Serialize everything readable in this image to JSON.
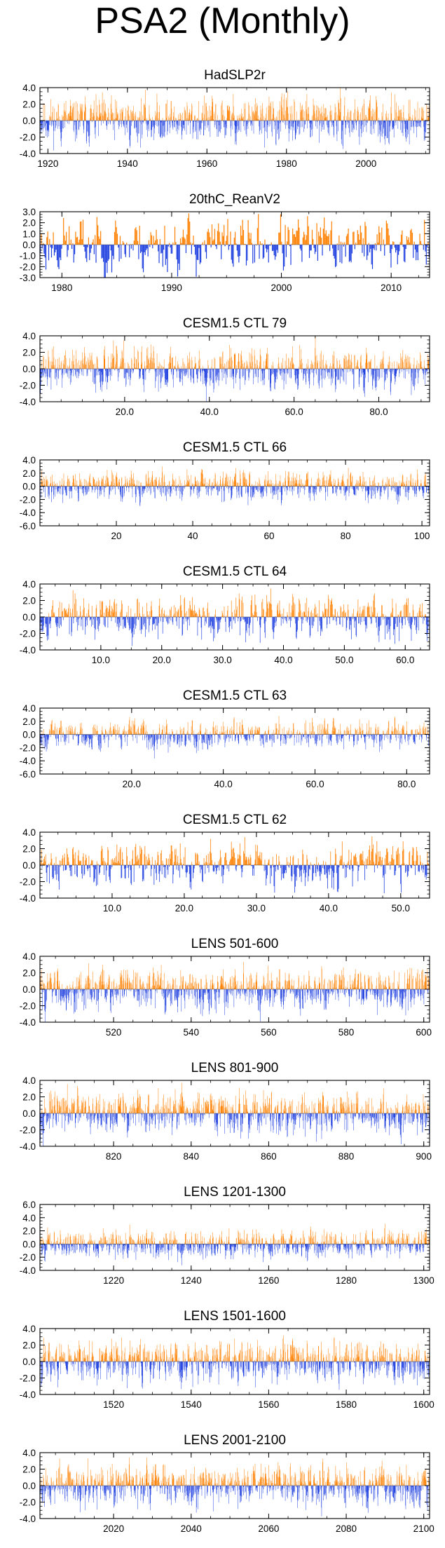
{
  "page": {
    "title": "PSA2 (Monthly)"
  },
  "colors": {
    "positive": "#ff8000",
    "negative": "#1e3fe0",
    "frame": "#000000"
  },
  "chart_data": [
    {
      "type": "bar",
      "title": "HadSLP2r",
      "x_range": [
        1918,
        2016
      ],
      "ylim": [
        -4,
        4
      ],
      "y_ticks": [
        4,
        2,
        0,
        -2,
        -4
      ],
      "y_tick_labels": [
        "4.0",
        "2.0",
        "0.0",
        "-2.0",
        "-4.0"
      ],
      "x_ticks": [
        1920,
        1940,
        1960,
        1980,
        2000
      ],
      "x_tick_labels": [
        "1920",
        "1940",
        "1960",
        "1980",
        "2000"
      ],
      "n_points": 1164,
      "amplitude": 1.3,
      "seed": 11
    },
    {
      "type": "bar",
      "title": "20thC_ReanV2",
      "x_range": [
        1978,
        2013.5
      ],
      "ylim": [
        -3,
        3
      ],
      "y_ticks": [
        3,
        2,
        1,
        0,
        -1,
        -2,
        -3
      ],
      "y_tick_labels": [
        "3.0",
        "2.0",
        "1.0",
        "0.0",
        "-1.0",
        "-2.0",
        "-3.0"
      ],
      "x_ticks": [
        1980,
        1990,
        2000,
        2010
      ],
      "x_tick_labels": [
        "1980",
        "1990",
        "2000",
        "2010"
      ],
      "n_points": 420,
      "amplitude": 1.2,
      "seed": 23
    },
    {
      "type": "bar",
      "title": "CESM1.5 CTL 79",
      "x_range": [
        0,
        92
      ],
      "ylim": [
        -4,
        4
      ],
      "y_ticks": [
        4,
        2,
        0,
        -2,
        -4
      ],
      "y_tick_labels": [
        "4.0",
        "2.0",
        "0.0",
        "-2.0",
        "-4.0"
      ],
      "x_ticks": [
        20,
        40,
        60,
        80
      ],
      "x_tick_labels": [
        "20.0",
        "40.0",
        "60.0",
        "80.0"
      ],
      "n_points": 1100,
      "amplitude": 1.2,
      "seed": 37
    },
    {
      "type": "bar",
      "title": "CESM1.5 CTL 66",
      "x_range": [
        0,
        102
      ],
      "ylim": [
        -6,
        4
      ],
      "y_ticks": [
        4,
        2,
        0,
        -2,
        -4,
        -6
      ],
      "y_tick_labels": [
        "4.0",
        "2.0",
        "0.0",
        "-2.0",
        "-4.0",
        "-6.0"
      ],
      "x_ticks": [
        20,
        40,
        60,
        80,
        100
      ],
      "x_tick_labels": [
        "20",
        "40",
        "60",
        "80",
        "100"
      ],
      "n_points": 1220,
      "amplitude": 1.0,
      "seed": 41
    },
    {
      "type": "bar",
      "title": "CESM1.5 CTL 64",
      "x_range": [
        0,
        64
      ],
      "ylim": [
        -4,
        4
      ],
      "y_ticks": [
        4,
        2,
        0,
        -2,
        -4
      ],
      "y_tick_labels": [
        "4.0",
        "2.0",
        "0.0",
        "-2.0",
        "-4.0"
      ],
      "x_ticks": [
        10,
        20,
        30,
        40,
        50,
        60
      ],
      "x_tick_labels": [
        "10.0",
        "20.0",
        "30.0",
        "40.0",
        "50.0",
        "60.0"
      ],
      "n_points": 760,
      "amplitude": 1.2,
      "seed": 53
    },
    {
      "type": "bar",
      "title": "CESM1.5 CTL 63",
      "x_range": [
        0,
        85
      ],
      "ylim": [
        -6,
        4
      ],
      "y_ticks": [
        4,
        2,
        0,
        -2,
        -4,
        -6
      ],
      "y_tick_labels": [
        "4.0",
        "2.0",
        "0.0",
        "-2.0",
        "-4.0",
        "-6.0"
      ],
      "x_ticks": [
        20,
        40,
        60,
        80
      ],
      "x_tick_labels": [
        "20.0",
        "40.0",
        "60.0",
        "80.0"
      ],
      "n_points": 1010,
      "amplitude": 1.0,
      "seed": 67
    },
    {
      "type": "bar",
      "title": "CESM1.5 CTL 62",
      "x_range": [
        0,
        54
      ],
      "ylim": [
        -4,
        4
      ],
      "y_ticks": [
        4,
        2,
        0,
        -2,
        -4
      ],
      "y_tick_labels": [
        "4.0",
        "2.0",
        "0.0",
        "-2.0",
        "-4.0"
      ],
      "x_ticks": [
        10,
        20,
        30,
        40,
        50
      ],
      "x_tick_labels": [
        "10.0",
        "20.0",
        "30.0",
        "40.0",
        "50.0"
      ],
      "n_points": 640,
      "amplitude": 1.2,
      "seed": 71
    },
    {
      "type": "bar",
      "title": "LENS 501-600",
      "x_range": [
        501,
        601.5
      ],
      "ylim": [
        -4,
        4
      ],
      "y_ticks": [
        4,
        2,
        0,
        -2,
        -4
      ],
      "y_tick_labels": [
        "4.0",
        "2.0",
        "0.0",
        "-2.0",
        "-4.0"
      ],
      "x_ticks": [
        520,
        540,
        560,
        580,
        600
      ],
      "x_tick_labels": [
        "520",
        "540",
        "560",
        "580",
        "600"
      ],
      "n_points": 1200,
      "amplitude": 1.2,
      "seed": 83
    },
    {
      "type": "bar",
      "title": "LENS 801-900",
      "x_range": [
        801,
        901.5
      ],
      "ylim": [
        -4,
        4
      ],
      "y_ticks": [
        4,
        2,
        0,
        -2,
        -4
      ],
      "y_tick_labels": [
        "4.0",
        "2.0",
        "0.0",
        "-2.0",
        "-4.0"
      ],
      "x_ticks": [
        820,
        840,
        860,
        880,
        900
      ],
      "x_tick_labels": [
        "820",
        "840",
        "860",
        "880",
        "900"
      ],
      "n_points": 1200,
      "amplitude": 1.2,
      "seed": 97
    },
    {
      "type": "bar",
      "title": "LENS 1201-1300",
      "x_range": [
        1201,
        1301.5
      ],
      "ylim": [
        -4,
        6
      ],
      "y_ticks": [
        6,
        4,
        2,
        0,
        -2,
        -4
      ],
      "y_tick_labels": [
        "6.0",
        "4.0",
        "2.0",
        "0.0",
        "-2.0",
        "-4.0"
      ],
      "x_ticks": [
        1220,
        1240,
        1260,
        1280,
        1300
      ],
      "x_tick_labels": [
        "1220",
        "1240",
        "1260",
        "1280",
        "1300"
      ],
      "n_points": 1200,
      "amplitude": 1.0,
      "seed": 101
    },
    {
      "type": "bar",
      "title": "LENS 1501-1600",
      "x_range": [
        1501,
        1601.5
      ],
      "ylim": [
        -4,
        4
      ],
      "y_ticks": [
        4,
        2,
        0,
        -2,
        -4
      ],
      "y_tick_labels": [
        "4.0",
        "2.0",
        "0.0",
        "-2.0",
        "-4.0"
      ],
      "x_ticks": [
        1520,
        1540,
        1560,
        1580,
        1600
      ],
      "x_tick_labels": [
        "1520",
        "1540",
        "1560",
        "1580",
        "1600"
      ],
      "n_points": 1200,
      "amplitude": 1.2,
      "seed": 113
    },
    {
      "type": "bar",
      "title": "LENS 2001-2100",
      "x_range": [
        2001,
        2101.5
      ],
      "ylim": [
        -4,
        4
      ],
      "y_ticks": [
        4,
        2,
        0,
        -2,
        -4
      ],
      "y_tick_labels": [
        "4.0",
        "2.0",
        "0.0",
        "-2.0",
        "-4.0"
      ],
      "x_ticks": [
        2020,
        2040,
        2060,
        2080,
        2100
      ],
      "x_tick_labels": [
        "2020",
        "2040",
        "2060",
        "2080",
        "2100"
      ],
      "n_points": 1200,
      "amplitude": 1.2,
      "seed": 127
    }
  ]
}
